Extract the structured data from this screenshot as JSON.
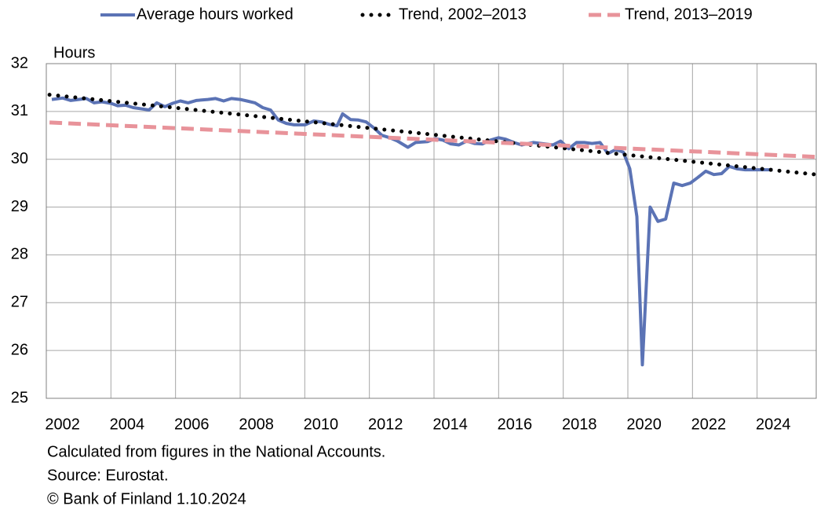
{
  "chart_data": {
    "type": "line",
    "y_axis_label": "Hours",
    "xlim": [
      2002,
      2025.83
    ],
    "ylim": [
      25,
      32
    ],
    "yticks": [
      25,
      26,
      27,
      28,
      29,
      30,
      31,
      32
    ],
    "xticks": [
      {
        "value": 2002.5,
        "label": "2002"
      },
      {
        "value": 2004.5,
        "label": "2004"
      },
      {
        "value": 2006.5,
        "label": "2006"
      },
      {
        "value": 2008.5,
        "label": "2008"
      },
      {
        "value": 2010.5,
        "label": "2010"
      },
      {
        "value": 2012.5,
        "label": "2012"
      },
      {
        "value": 2014.5,
        "label": "2014"
      },
      {
        "value": 2016.5,
        "label": "2016"
      },
      {
        "value": 2018.5,
        "label": "2018"
      },
      {
        "value": 2020.5,
        "label": "2020"
      },
      {
        "value": 2022.5,
        "label": "2022"
      },
      {
        "value": 2024.5,
        "label": "2024"
      }
    ],
    "x_grid_lines": [
      2004,
      2006,
      2008,
      2010,
      2012,
      2014,
      2016,
      2018,
      2020,
      2022,
      2024
    ],
    "grid": true,
    "legend_position": "top",
    "series": [
      {
        "name": "Average hours worked",
        "color": "#5b73b5",
        "style": "solid",
        "x": [
          2002.17,
          2002.51,
          2002.75,
          2003.0,
          2003.24,
          2003.48,
          2003.72,
          2004.0,
          2004.21,
          2004.45,
          2004.69,
          2004.99,
          2005.18,
          2005.42,
          2005.67,
          2005.91,
          2006.15,
          2006.39,
          2006.64,
          2007.0,
          2007.24,
          2007.49,
          2007.73,
          2008.0,
          2008.21,
          2008.46,
          2008.7,
          2008.94,
          2009.18,
          2009.43,
          2009.67,
          2010.01,
          2010.28,
          2010.52,
          2010.76,
          2011.0,
          2011.17,
          2011.42,
          2011.66,
          2011.9,
          2012.15,
          2012.39,
          2012.63,
          2012.87,
          2013.19,
          2013.43,
          2013.8,
          2014.04,
          2014.28,
          2014.52,
          2014.77,
          2015.01,
          2015.25,
          2015.5,
          2015.74,
          2016.0,
          2016.22,
          2016.47,
          2016.71,
          2017.07,
          2017.44,
          2017.68,
          2017.92,
          2018.17,
          2018.41,
          2018.65,
          2018.89,
          2019.14,
          2019.38,
          2019.62,
          2019.86,
          2020.06,
          2020.28,
          2020.45,
          2020.69,
          2020.93,
          2021.17,
          2021.42,
          2021.68,
          2021.93,
          2022.17,
          2022.41,
          2022.66,
          2022.9,
          2023.14,
          2023.38,
          2023.63,
          2023.99,
          2024.48
        ],
        "values": [
          31.25,
          31.28,
          31.23,
          31.25,
          31.27,
          31.18,
          31.2,
          31.17,
          31.12,
          31.13,
          31.08,
          31.05,
          31.03,
          31.18,
          31.1,
          31.17,
          31.22,
          31.18,
          31.23,
          31.25,
          31.27,
          31.22,
          31.27,
          31.25,
          31.22,
          31.18,
          31.08,
          31.03,
          30.82,
          30.75,
          30.72,
          30.72,
          30.8,
          30.78,
          30.73,
          30.7,
          30.95,
          30.83,
          30.82,
          30.78,
          30.65,
          30.5,
          30.45,
          30.38,
          30.25,
          30.35,
          30.37,
          30.43,
          30.4,
          30.32,
          30.3,
          30.38,
          30.33,
          30.32,
          30.4,
          30.45,
          30.42,
          30.35,
          30.3,
          30.35,
          30.32,
          30.3,
          30.38,
          30.22,
          30.35,
          30.35,
          30.33,
          30.35,
          30.12,
          30.2,
          30.15,
          29.8,
          28.8,
          25.7,
          29.0,
          28.7,
          28.75,
          29.5,
          29.45,
          29.5,
          29.62,
          29.75,
          29.68,
          29.7,
          29.85,
          29.8,
          29.78,
          29.78,
          29.78
        ]
      },
      {
        "name": "Trend, 2002–2013",
        "color": "#000000",
        "style": "dotted",
        "x": [
          2002.1,
          2025.83
        ],
        "values": [
          31.35,
          29.68
        ]
      },
      {
        "name": "Trend, 2013–2019",
        "color": "#e8939a",
        "style": "dashed",
        "x": [
          2002.1,
          2025.83
        ],
        "values": [
          30.77,
          30.05
        ]
      }
    ],
    "notes": [
      "Calculated from figures in the National Accounts.",
      "Source: Eurostat.",
      "© Bank of Finland 1.10.2024"
    ]
  }
}
